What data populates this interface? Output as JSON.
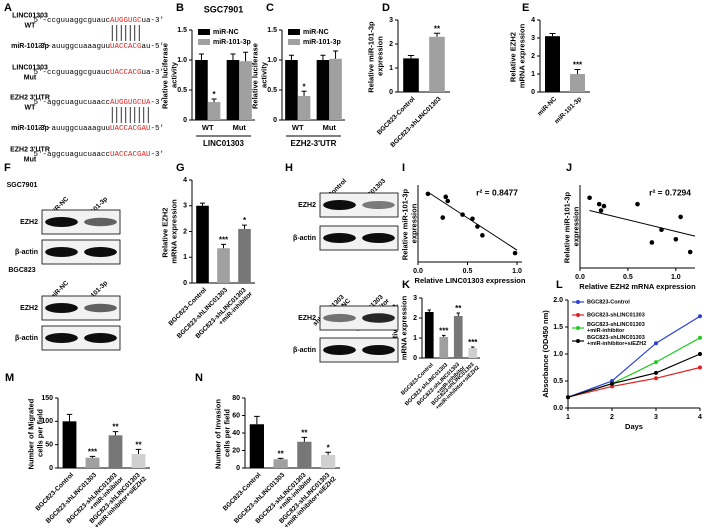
{
  "chart_data": [
    {
      "panel": "B",
      "type": "bar",
      "title": "SGC7901",
      "ylabel": "Relative luciferase activity",
      "xlabel": "LINC01303",
      "categories": [
        "WT",
        "Mut"
      ],
      "series": [
        {
          "name": "miR-NC",
          "color": "#000000",
          "values": [
            1.0,
            1.0
          ],
          "errors": [
            0.1,
            0.1
          ]
        },
        {
          "name": "miR-101-3p",
          "color": "#a0a0a0",
          "values": [
            0.3,
            0.98
          ],
          "errors": [
            0.05,
            0.15
          ],
          "annotations": [
            "*",
            null
          ]
        }
      ],
      "ylim": [
        0,
        1.5
      ],
      "yticks": [
        0,
        0.5,
        {
          "value": 1,
          "label": "1.0"
        },
        1.5
      ]
    },
    {
      "panel": "C",
      "type": "bar",
      "ylabel": "Relative luciferase activity",
      "xlabel": "EZH2-3'UTR",
      "categories": [
        "WT",
        "Mut"
      ],
      "series": [
        {
          "name": "miR-NC",
          "color": "#000000",
          "values": [
            1.0,
            1.0
          ],
          "errors": [
            0.08,
            0.08
          ]
        },
        {
          "name": "miR-101-3p",
          "color": "#a0a0a0",
          "values": [
            0.4,
            1.02
          ],
          "errors": [
            0.08,
            0.13
          ],
          "annotations": [
            "*",
            null
          ]
        }
      ],
      "ylim": [
        0,
        1.5
      ],
      "yticks": [
        0,
        0.5,
        {
          "value": 1,
          "label": "1.0"
        },
        1.5
      ]
    },
    {
      "panel": "D",
      "type": "bar",
      "ylabel": "Relative miR-101-3p expression",
      "categories": [
        "BGC823-Control",
        "BGC823-shLINC01303"
      ],
      "values": [
        1.4,
        2.3
      ],
      "errors": [
        0.12,
        0.15
      ],
      "colors": [
        "#000000",
        "#a0a0a0"
      ],
      "annotations": [
        null,
        "**"
      ],
      "ylim": [
        0,
        3
      ],
      "yticks": [
        0,
        1,
        2,
        3
      ]
    },
    {
      "panel": "E",
      "type": "bar",
      "ylabel": "Relative EZH2 mRNA expression",
      "categories": [
        "miR-NC",
        "miR-101-3p"
      ],
      "values": [
        3.1,
        1.0
      ],
      "errors": [
        0.15,
        0.25
      ],
      "colors": [
        "#000000",
        "#a0a0a0"
      ],
      "annotations": [
        null,
        "***"
      ],
      "ylim": [
        0,
        4
      ],
      "yticks": [
        0,
        1,
        2,
        3,
        4
      ]
    },
    {
      "panel": "G",
      "type": "bar",
      "ylabel": "Relative EZH2 mRNA expression",
      "categories": [
        "BGC823-Control",
        "BGC823-shLINC01303",
        "BGC823-shLINC01303 +miR-inhibitor"
      ],
      "values": [
        3.0,
        1.35,
        2.1
      ],
      "errors": [
        0.1,
        0.15,
        0.15
      ],
      "colors": [
        "#000000",
        "#a0a0a0",
        "#777777"
      ],
      "annotations": [
        null,
        "***",
        "*"
      ],
      "ylim": [
        0,
        4
      ],
      "yticks": [
        0,
        1,
        2,
        3,
        4
      ]
    },
    {
      "panel": "I",
      "type": "scatter",
      "xlabel": "Relative LINC01303 expression",
      "ylabel": "Relative miR-101-3p expression",
      "annotation": "r² = 0.8477",
      "color": "#000000",
      "x": [
        0.1,
        0.28,
        0.3,
        0.25,
        0.45,
        0.55,
        0.6,
        0.65,
        0.98
      ],
      "y": [
        11.5,
        11,
        10.3,
        7.5,
        8,
        7.3,
        6,
        4.5,
        1.5
      ],
      "trendline": {
        "x": [
          0.1,
          1.0
        ],
        "y": [
          11.8,
          2
        ]
      },
      "xlim": [
        0,
        1.05
      ],
      "xticks": [
        {
          "value": 0,
          "label": "0.0"
        },
        0.5,
        {
          "value": 1,
          "label": "1.0"
        }
      ],
      "ylim": [
        0,
        13
      ]
    },
    {
      "panel": "J",
      "type": "scatter",
      "xlabel": "Relative EZH2 mRNA expression",
      "ylabel": "Relative miR-101-3p expression",
      "annotation": "r² = 0.7294",
      "color": "#000000",
      "x": [
        0.1,
        0.2,
        0.25,
        0.22,
        0.6,
        0.75,
        0.85,
        1.0,
        1.05,
        1.15
      ],
      "y": [
        11,
        10,
        9.7,
        9,
        10,
        4,
        6,
        4.5,
        8,
        2.5
      ],
      "trendline": {
        "x": [
          0.1,
          1.2
        ],
        "y": [
          9,
          5
        ]
      },
      "xlim": [
        0,
        1.2
      ],
      "xticks": [
        {
          "value": 0,
          "label": "0.0"
        },
        0.5,
        {
          "value": 1,
          "label": "1.0"
        }
      ],
      "ylim": [
        0,
        13
      ]
    },
    {
      "panel": "K",
      "type": "bar",
      "ylabel": "Relative EZH2 mRNA expression",
      "categories": [
        "BGC823-Control",
        "BGC823-shLINC01303",
        "BGC823-shLINC01303 +miR-inhibitor",
        "BGC823-shLINC01303 +miR-inhibitor+siEZH2"
      ],
      "values": [
        2.3,
        1.05,
        2.1,
        0.5
      ],
      "errors": [
        0.1,
        0.08,
        0.15,
        0.05
      ],
      "colors": [
        "#000000",
        "#a0a0a0",
        "#777777",
        "#d0d0d0"
      ],
      "annotations": [
        null,
        "***",
        "**",
        "***"
      ],
      "ylim": [
        0,
        3
      ],
      "yticks": [
        0,
        1,
        2,
        3
      ]
    },
    {
      "panel": "L",
      "type": "line",
      "xlabel": "Days",
      "ylabel": "Absorbance (OD450 nm)",
      "x": [
        1,
        2,
        3,
        4
      ],
      "xlim": [
        1,
        4
      ],
      "xticks": [
        1,
        2,
        3,
        4
      ],
      "series": [
        {
          "name": "BGC823-Control",
          "color": "#2a3fd6",
          "values": [
            0.2,
            0.5,
            1.2,
            1.7
          ]
        },
        {
          "name": "BGC823-shLINC01303",
          "color": "#e02020",
          "values": [
            0.2,
            0.4,
            0.55,
            0.75
          ]
        },
        {
          "name": "BGC823-shLINC01303 +miR-inhibitor",
          "color": "#22cc22",
          "values": [
            0.2,
            0.45,
            0.85,
            1.3
          ]
        },
        {
          "name": "BGC823-shLINC01303 +miR-inhibitor+siEZH2",
          "color": "#000000",
          "values": [
            0.2,
            0.45,
            0.65,
            1.0
          ]
        }
      ],
      "ylim": [
        0,
        2
      ],
      "yticks": [
        {
          "value": 0,
          "label": "0.0"
        },
        0.5,
        {
          "value": 1,
          "label": "1.0"
        },
        1.5,
        {
          "value": 2,
          "label": "2.0"
        }
      ]
    },
    {
      "panel": "M",
      "type": "bar",
      "ylabel": "Number of Migrated cells per field",
      "categories": [
        "BGC823-Control",
        "BGC823-shLINC01303",
        "BGC823-shLINC01303 +miR-inhibitor",
        "BGC823-shLINC01303 +miR-inhibitor+siEZH2"
      ],
      "values": [
        100,
        22,
        70,
        30
      ],
      "errors": [
        15,
        3,
        8,
        10
      ],
      "colors": [
        "#000000",
        "#a0a0a0",
        "#777777",
        "#d0d0d0"
      ],
      "annotations": [
        null,
        "***",
        "**",
        "**"
      ],
      "ylim": [
        0,
        150
      ],
      "yticks": [
        0,
        50,
        100,
        150
      ]
    },
    {
      "panel": "N",
      "type": "bar",
      "ylabel": "Number of Invasion cells per field",
      "categories": [
        "BGC823-Control",
        "BGC823-shLINC01303",
        "BGC823-shLINC01303 +miR-inhibitor",
        "BGC823-shLINC01303 +miR-inhibitor+siEZH2"
      ],
      "values": [
        50,
        10,
        30,
        15
      ],
      "errors": [
        9,
        1,
        5,
        3
      ],
      "colors": [
        "#000000",
        "#a0a0a0",
        "#777777",
        "#d0d0d0"
      ],
      "annotations": [
        null,
        "**",
        "**",
        "*"
      ],
      "ylim": [
        0,
        80
      ],
      "yticks": [
        0,
        20,
        40,
        60,
        80
      ]
    }
  ],
  "sequences": {
    "panel": "A",
    "rows": [
      {
        "label": [
          "LINC01303",
          "WT"
        ],
        "before": "5'-ccguuaggcguauc",
        "seed": "AUGGUGC",
        "after": "ua-3'"
      },
      {
        "label": [
          "miR-101-3p"
        ],
        "before": "3'-auuggcuaaaguu",
        "seed": "UACCACG",
        "after": "au-5'"
      },
      {
        "label": [
          "LINC01303",
          "Mut"
        ],
        "before": "5'-ccguuaggcguauc",
        "seed": "UACCACG",
        "after": "ua-3'"
      },
      {
        "label": [
          "EZH2 3'UTR",
          "WT"
        ],
        "before": "5'-aggcuagucuaacc",
        "seed": "AUGGUGCUA",
        "after": "-3'"
      },
      {
        "label": [
          "miR-101-3p"
        ],
        "before": "3'-auuggcuaaaguu",
        "seed": "UACCACGAU",
        "after": "-5'"
      },
      {
        "label": [
          "EZH2 3'UTR",
          "Mut"
        ],
        "before": "5'-aggcuagucuaacc",
        "seed": "UACCACGAU",
        "after": "-3'"
      }
    ]
  },
  "blots": [
    {
      "panel": "F",
      "groups": [
        {
          "cell": "SGC7901",
          "lanes": [
            "miR-NC",
            "miR-101-3p"
          ],
          "rows": [
            "EZH2",
            "β-actin"
          ]
        },
        {
          "cell": "BGC823",
          "lanes": [
            "miR-NC",
            "miR-101-3p"
          ],
          "rows": [
            "EZH2",
            "β-actin"
          ]
        }
      ]
    },
    {
      "panel": "H",
      "groups": [
        {
          "lanes": [
            "Control",
            "shLINC01303"
          ],
          "rows": [
            "EZH2",
            "β-actin"
          ]
        },
        {
          "lanes": [
            "shLINC01303 +miR-NC",
            "shLINC01303 +miR-inhibitor"
          ],
          "rows": [
            "EZH2",
            "β-actin"
          ]
        }
      ]
    }
  ]
}
